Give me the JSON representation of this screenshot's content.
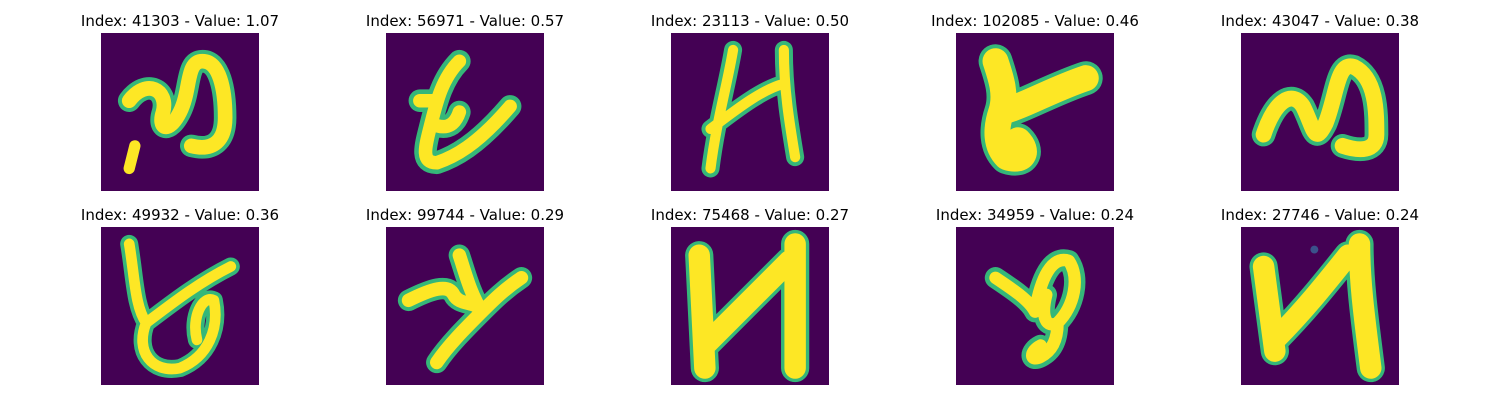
{
  "colors": {
    "background": "#440154",
    "stroke": "#fde725",
    "edge": "#35b779"
  },
  "panels": [
    {
      "label": "Index: 41303 - Value: 1.07",
      "glyph": "g0"
    },
    {
      "label": "Index: 56971 - Value: 0.57",
      "glyph": "g1"
    },
    {
      "label": "Index: 23113 - Value: 0.50",
      "glyph": "g2"
    },
    {
      "label": "Index: 102085 - Value: 0.46",
      "glyph": "g3"
    },
    {
      "label": "Index: 43047 - Value: 0.38",
      "glyph": "g4"
    },
    {
      "label": "Index: 49932 - Value: 0.36",
      "glyph": "g5"
    },
    {
      "label": "Index: 99744 - Value: 0.29",
      "glyph": "g6"
    },
    {
      "label": "Index: 75468 - Value: 0.27",
      "glyph": "g7"
    },
    {
      "label": "Index: 34959 - Value: 0.24",
      "glyph": "g8"
    },
    {
      "label": "Index: 27746 - Value: 0.24",
      "glyph": "g9"
    }
  ]
}
